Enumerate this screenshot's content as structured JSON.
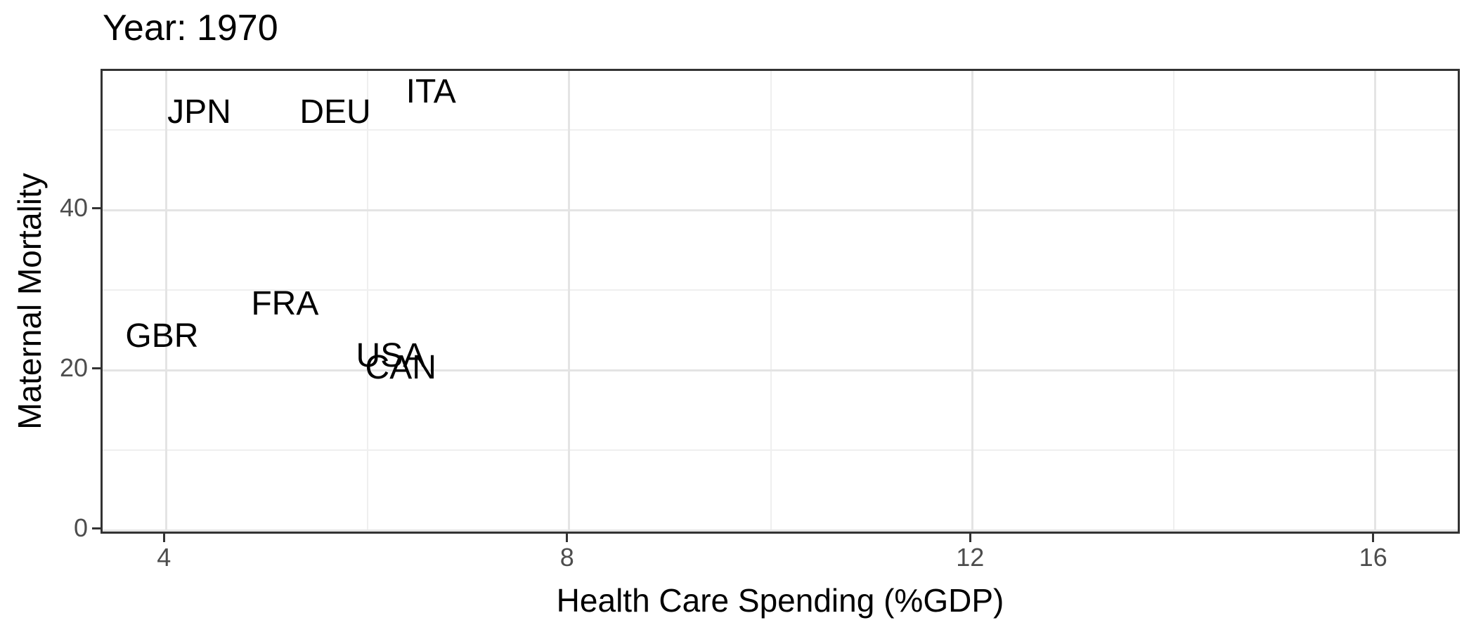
{
  "chart_data": {
    "type": "scatter",
    "title": "Year: 1970",
    "xlabel": "Health Care Spending (%GDP)",
    "ylabel": "Maternal Mortality",
    "xlim": [
      3.37,
      16.86
    ],
    "ylim": [
      -0.7,
      57.4
    ],
    "xticks": [
      4,
      8,
      12,
      16
    ],
    "yticks": [
      0,
      20,
      40
    ],
    "xticks_minor": [
      6,
      10,
      14
    ],
    "yticks_minor": [
      10,
      30,
      50
    ],
    "grid": "on",
    "legend": "none",
    "point_style": "text-labels",
    "points": [
      {
        "label": "JPN",
        "x": 4.35,
        "y": 52
      },
      {
        "label": "DEU",
        "x": 5.7,
        "y": 52
      },
      {
        "label": "ITA",
        "x": 6.65,
        "y": 54.5
      },
      {
        "label": "FRA",
        "x": 5.2,
        "y": 28
      },
      {
        "label": "GBR",
        "x": 3.98,
        "y": 24
      },
      {
        "label": "USA",
        "x": 6.25,
        "y": 21.5
      },
      {
        "label": "CAN",
        "x": 6.35,
        "y": 20
      }
    ],
    "colors": {
      "text": "#000000",
      "tick_label": "#4d4d4d",
      "axis_border": "#333333",
      "grid_major": "#e4e4e4",
      "grid_minor": "#efefef",
      "background": "#ffffff"
    }
  }
}
